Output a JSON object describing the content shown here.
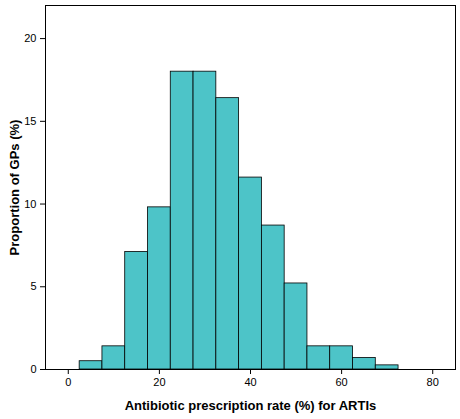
{
  "chart_data": {
    "type": "histogram",
    "x_label": "Antibiotic prescription rate (%) for ARTIs",
    "y_label": "Proportion of GPs (%)",
    "bins": [
      2.5,
      7.5,
      12.5,
      17.5,
      22.5,
      27.5,
      32.5,
      37.5,
      42.5,
      47.5,
      52.5,
      57.5,
      62.5,
      67.5,
      72.5
    ],
    "values": [
      0.5,
      1.4,
      7.1,
      9.8,
      18.0,
      18.0,
      16.4,
      11.6,
      8.7,
      5.2,
      1.4,
      1.4,
      0.7,
      0.25
    ],
    "color": "#4dc4c8",
    "xlim": [
      -5,
      85
    ],
    "xticks": [
      0,
      20,
      40,
      60,
      80
    ],
    "ylim": [
      0,
      22
    ],
    "yticks": [
      0,
      5,
      10,
      15,
      20
    ],
    "grid": false
  }
}
